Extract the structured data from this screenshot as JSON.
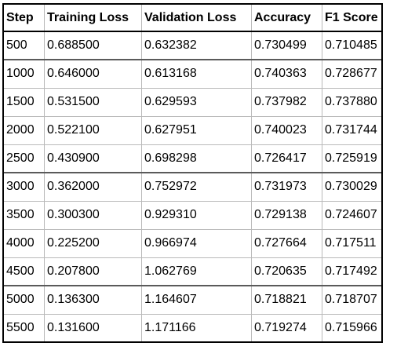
{
  "table": {
    "headers": [
      "Step",
      "Training Loss",
      "Validation Loss",
      "Accuracy",
      "F1 Score"
    ],
    "rows": [
      [
        "500",
        "0.688500",
        "0.632382",
        "0.730499",
        "0.710485"
      ],
      [
        "1000",
        "0.646000",
        "0.613168",
        "0.740363",
        "0.728677"
      ],
      [
        "1500",
        "0.531500",
        "0.629593",
        "0.737982",
        "0.737880"
      ],
      [
        "2000",
        "0.522100",
        "0.627951",
        "0.740023",
        "0.731744"
      ],
      [
        "2500",
        "0.430900",
        "0.698298",
        "0.726417",
        "0.725919"
      ],
      [
        "3000",
        "0.362000",
        "0.752972",
        "0.731973",
        "0.730029"
      ],
      [
        "3500",
        "0.300300",
        "0.929310",
        "0.729138",
        "0.724607"
      ],
      [
        "4000",
        "0.225200",
        "0.966974",
        "0.727664",
        "0.717511"
      ],
      [
        "4500",
        "0.207800",
        "1.062769",
        "0.720635",
        "0.717492"
      ],
      [
        "5000",
        "0.136300",
        "1.164607",
        "0.718821",
        "0.718707"
      ],
      [
        "5500",
        "0.131600",
        "1.171166",
        "0.719274",
        "0.715966"
      ]
    ]
  }
}
